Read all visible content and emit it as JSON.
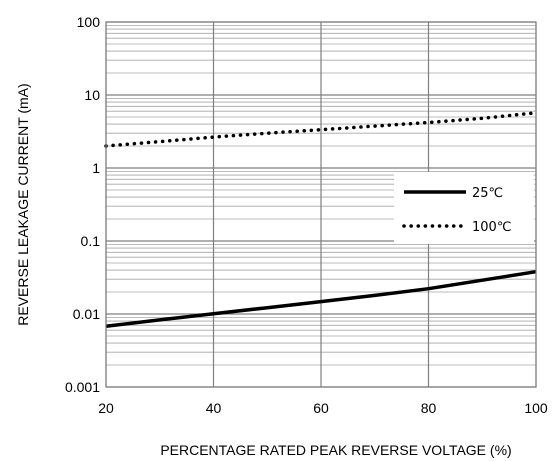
{
  "chart_data": {
    "type": "line",
    "title": "",
    "xlabel": "PERCENTAGE RATED PEAK REVERSE VOLTAGE (%)",
    "ylabel": "REVERSE LEAKAGE CURRENT (mA)",
    "xlim": [
      20,
      100
    ],
    "ylim": [
      0.001,
      100
    ],
    "yscale": "log",
    "grid": true,
    "legend_position": "right, inside plot",
    "x_ticks": [
      "20",
      "40",
      "60",
      "80",
      "100"
    ],
    "y_ticks": [
      "0.001",
      "0.01",
      "0.1",
      "1",
      "10",
      "100"
    ],
    "x_tick_values": [
      20,
      40,
      60,
      80,
      100
    ],
    "y_tick_values": [
      0.001,
      0.01,
      0.1,
      1,
      10,
      100
    ],
    "series": [
      {
        "name": "25℃",
        "style": "solid",
        "color": "#000000",
        "x": [
          20,
          30,
          40,
          50,
          60,
          70,
          80,
          90,
          100
        ],
        "y": [
          0.0068,
          0.0083,
          0.0101,
          0.0122,
          0.0148,
          0.018,
          0.0222,
          0.029,
          0.038
        ]
      },
      {
        "name": "100℃",
        "style": "dotted",
        "color": "#000000",
        "x": [
          20,
          30,
          40,
          50,
          60,
          70,
          80,
          90,
          100
        ],
        "y": [
          2.0,
          2.3,
          2.65,
          3.0,
          3.35,
          3.75,
          4.2,
          4.8,
          5.7
        ]
      }
    ]
  }
}
